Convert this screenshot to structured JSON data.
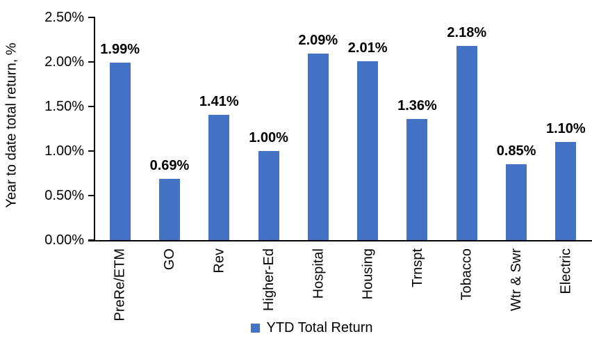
{
  "chart_data": {
    "type": "bar",
    "title": "",
    "xlabel": "",
    "ylabel": "Year to date total return, %",
    "categories": [
      "PreRe/ETM",
      "GO",
      "Rev",
      "Higher-Ed",
      "Hospital",
      "Housing",
      "Trnspt",
      "Tobacco",
      "Wtr & Swr",
      "Electric"
    ],
    "series": [
      {
        "name": "YTD Total Return",
        "values": [
          1.99,
          0.69,
          1.41,
          1.0,
          2.09,
          2.01,
          1.36,
          2.18,
          0.85,
          1.1
        ],
        "value_labels": [
          "1.99%",
          "0.69%",
          "1.41%",
          "1.00%",
          "2.09%",
          "2.01%",
          "1.36%",
          "2.18%",
          "0.85%",
          "1.10%"
        ]
      }
    ],
    "ylim": [
      0,
      2.5
    ],
    "ytick_values": [
      0,
      0.5,
      1.0,
      1.5,
      2.0,
      2.5
    ],
    "ytick_labels": [
      "0.00%",
      "0.50%",
      "1.00%",
      "1.50%",
      "2.00%",
      "2.50%"
    ],
    "grid": false,
    "legend_position": "bottom",
    "colors": {
      "bar": "#4472C4",
      "axis": "#000000",
      "text": "#000000"
    }
  },
  "legend": {
    "ytd_label": "YTD Total Return"
  }
}
